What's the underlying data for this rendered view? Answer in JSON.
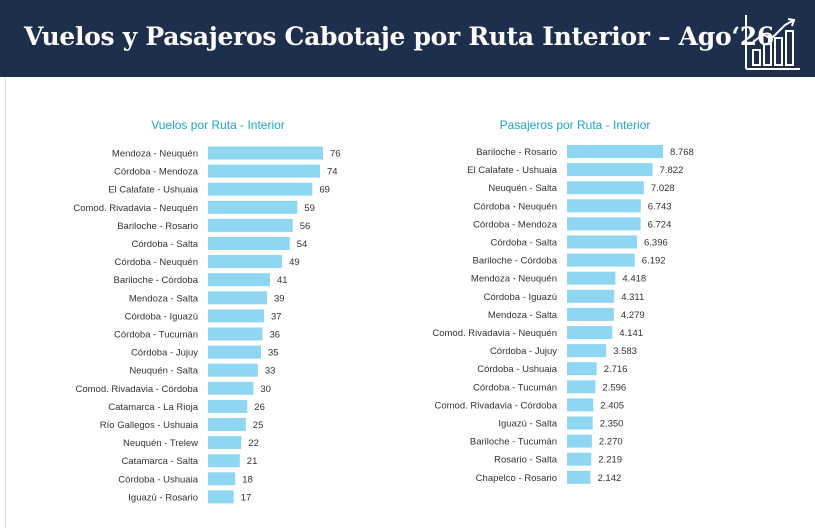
{
  "header": {
    "title": "Vuelos y Pasajeros Cabotaje por Ruta Interior – Ago‘26",
    "logo_icon": "bar-chart-growth-icon",
    "background": "#1d2f4d"
  },
  "chart_data": [
    {
      "type": "bar",
      "orientation": "horizontal",
      "title": "Vuelos por Ruta - Interior",
      "color": "#8fd6f2",
      "categories": [
        "Mendoza - Neuquén",
        "Córdoba - Mendoza",
        "El Calafate - Ushuaia",
        "Comod. Rivadavia - Neuquén",
        "Bariloche - Rosario",
        "Córdoba - Salta",
        "Córdoba - Neuquén",
        "Bariloche - Córdoba",
        "Mendoza - Salta",
        "Córdoba - Iguazú",
        "Córdoba - Tucumán",
        "Córdoba - Jujuy",
        "Neuquén - Salta",
        "Comod. Rivadavia - Córdoba",
        "Catamarca - La Rioja",
        "Río Gallegos - Ushuaia",
        "Neuquén - Trelew",
        "Catamarca - Salta",
        "Córdoba - Ushuaia",
        "Iguazú - Rosario"
      ],
      "values": [
        76,
        74,
        69,
        59,
        56,
        54,
        49,
        41,
        39,
        37,
        36,
        35,
        33,
        30,
        26,
        25,
        22,
        21,
        18,
        17
      ],
      "value_labels": [
        "76",
        "74",
        "69",
        "59",
        "56",
        "54",
        "49",
        "41",
        "39",
        "37",
        "36",
        "35",
        "33",
        "30",
        "26",
        "25",
        "22",
        "21",
        "18",
        "17"
      ]
    },
    {
      "type": "bar",
      "orientation": "horizontal",
      "title": "Pasajeros por Ruta - Interior",
      "color": "#8fd6f2",
      "categories": [
        "Bariloche - Rosario",
        "El Calafate - Ushuaia",
        "Neuquén - Salta",
        "Córdoba - Neuquén",
        "Córdoba - Mendoza",
        "Córdoba - Salta",
        "Bariloche - Córdoba",
        "Mendoza - Neuquén",
        "Córdoba - Iguazú",
        "Mendoza - Salta",
        "Comod. Rivadavia - Neuquén",
        "Córdoba - Jujuy",
        "Córdoba - Ushuaia",
        "Córdoba - Tucumán",
        "Comod. Rivadavia - Córdoba",
        "Iguazú - Salta",
        "Bariloche - Tucumán",
        "Rosario - Salta",
        "Chapelco - Rosario"
      ],
      "values": [
        8768,
        7822,
        7028,
        6743,
        6724,
        6396,
        6192,
        4418,
        4311,
        4279,
        4141,
        3583,
        2716,
        2596,
        2405,
        2350,
        2270,
        2219,
        2142
      ],
      "value_labels": [
        "8.768",
        "7.822",
        "7.028",
        "6.743",
        "6.724",
        "6.396",
        "6.192",
        "4.418",
        "4.311",
        "4.279",
        "4.141",
        "3.583",
        "2.716",
        "2.596",
        "2.405",
        "2.350",
        "2.270",
        "2.219",
        "2.142"
      ]
    }
  ]
}
